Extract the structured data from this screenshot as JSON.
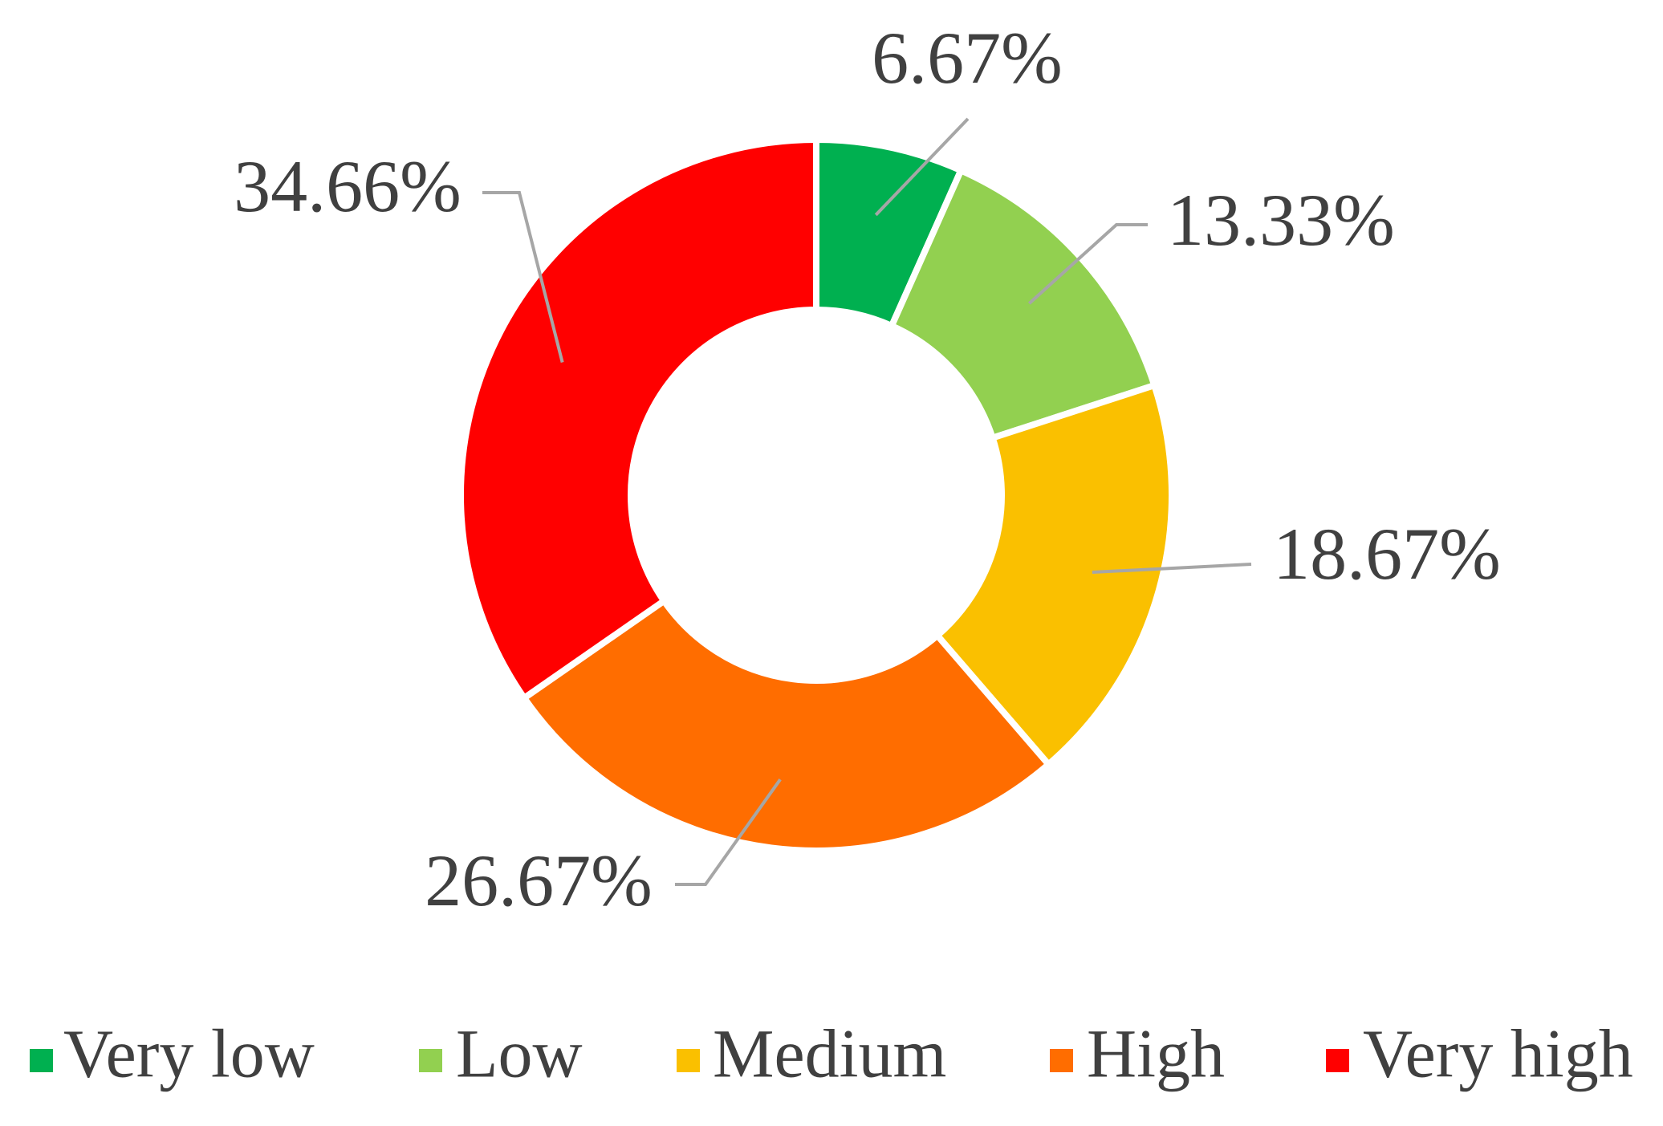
{
  "chart_data": {
    "type": "donut",
    "categories": [
      "Very low",
      "Low",
      "Medium",
      "High",
      "Very high"
    ],
    "values": [
      6.67,
      13.33,
      18.67,
      26.67,
      34.66
    ],
    "value_labels": [
      "6.67%",
      "13.33%",
      "18.67%",
      "26.67%",
      "34.66%"
    ],
    "colors": [
      "#00b050",
      "#92d050",
      "#fac000",
      "#ff6d00",
      "#ff0000"
    ],
    "legend": "bottom"
  }
}
